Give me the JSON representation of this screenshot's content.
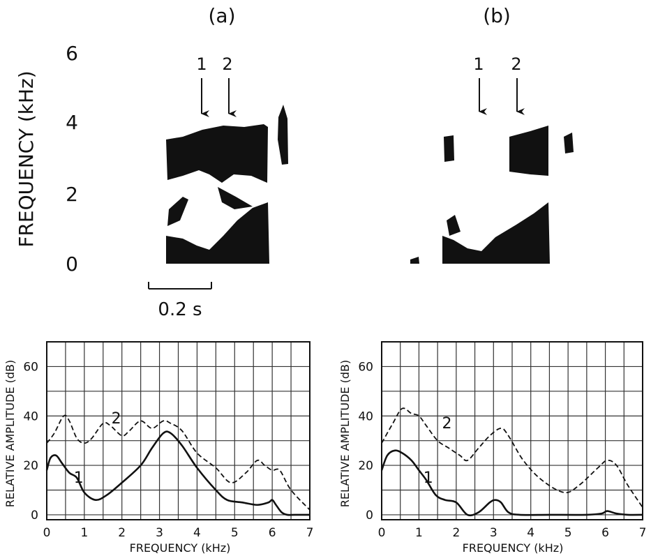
{
  "panels": [
    {
      "label": "(a)",
      "arrows": [
        "1",
        "2"
      ],
      "scale_bar": "0.2 s"
    },
    {
      "label": "(b)",
      "arrows": [
        "1",
        "2"
      ]
    }
  ],
  "spectrogram_axis": {
    "ylabel": "FREQUENCY (kHz)",
    "ticks": [
      "0",
      "2",
      "4",
      "6"
    ]
  },
  "chart_data": [
    {
      "type": "line",
      "xlabel": "FREQUENCY (kHz)",
      "ylabel": "RELATIVE AMPLITUDE (dB)",
      "xlim": [
        0,
        7
      ],
      "ylim": [
        -2,
        70
      ],
      "xticks": [
        "0",
        "1",
        "2",
        "3",
        "4",
        "5",
        "6",
        "7"
      ],
      "yticks": [
        "0",
        "20",
        "40",
        "60"
      ],
      "grid": true,
      "series": [
        {
          "name": "1",
          "style": "solid",
          "x": [
            0,
            0.1,
            0.25,
            0.4,
            0.6,
            0.8,
            1.0,
            1.3,
            1.6,
            2.0,
            2.5,
            2.8,
            3.1,
            3.3,
            3.6,
            4.0,
            4.5,
            4.8,
            5.2,
            5.6,
            5.9,
            6.0,
            6.1,
            6.25,
            6.4,
            6.6,
            7.0
          ],
          "y": [
            18,
            23,
            24,
            21,
            17,
            15,
            9,
            6,
            8,
            13,
            20,
            27,
            33,
            33,
            28,
            19,
            10,
            6,
            5,
            4,
            5,
            6,
            4,
            1,
            0,
            0,
            0
          ]
        },
        {
          "name": "2",
          "style": "dashed",
          "x": [
            0,
            0.2,
            0.45,
            0.6,
            0.8,
            1.0,
            1.2,
            1.5,
            1.7,
            2.0,
            2.2,
            2.5,
            2.8,
            3.1,
            3.3,
            3.6,
            4.0,
            4.5,
            4.9,
            5.3,
            5.6,
            5.8,
            6.0,
            6.2,
            6.5,
            7.0
          ],
          "y": [
            29,
            33,
            40,
            38,
            31,
            29,
            31,
            37,
            36,
            32,
            34,
            38,
            35,
            38,
            37,
            34,
            25,
            19,
            13,
            17,
            22,
            20,
            18,
            18,
            10,
            2
          ]
        }
      ]
    },
    {
      "type": "line",
      "xlabel": "FREQUENCY (kHz)",
      "ylabel": "RELATIVE AMPLITUDE (dB)",
      "xlim": [
        0,
        7
      ],
      "ylim": [
        -2,
        70
      ],
      "xticks": [
        "0",
        "1",
        "2",
        "3",
        "4",
        "5",
        "6",
        "7"
      ],
      "yticks": [
        "0",
        "20",
        "40",
        "60"
      ],
      "grid": true,
      "series": [
        {
          "name": "1",
          "style": "solid",
          "x": [
            0,
            0.15,
            0.35,
            0.55,
            0.8,
            1.0,
            1.2,
            1.45,
            1.7,
            2.0,
            2.3,
            2.6,
            2.9,
            3.05,
            3.2,
            3.4,
            3.7,
            4.5,
            5.5,
            5.9,
            6.05,
            6.3,
            6.6,
            7.0
          ],
          "y": [
            18,
            24,
            26,
            25,
            22,
            18,
            14,
            8,
            6,
            5,
            0,
            1,
            5,
            6,
            5,
            1,
            0,
            0,
            0,
            0.5,
            1.5,
            0.5,
            0,
            0
          ]
        },
        {
          "name": "2",
          "style": "dashed",
          "x": [
            0,
            0.3,
            0.55,
            0.8,
            1.0,
            1.2,
            1.5,
            1.8,
            2.1,
            2.3,
            2.6,
            2.9,
            3.2,
            3.4,
            3.8,
            4.3,
            4.9,
            5.3,
            5.8,
            6.05,
            6.3,
            6.6,
            7.0
          ],
          "y": [
            29,
            37,
            43,
            41,
            40,
            36,
            30,
            27,
            24,
            22,
            27,
            32,
            35,
            32,
            22,
            14,
            9,
            12,
            19,
            22,
            20,
            12,
            3
          ]
        }
      ]
    }
  ]
}
